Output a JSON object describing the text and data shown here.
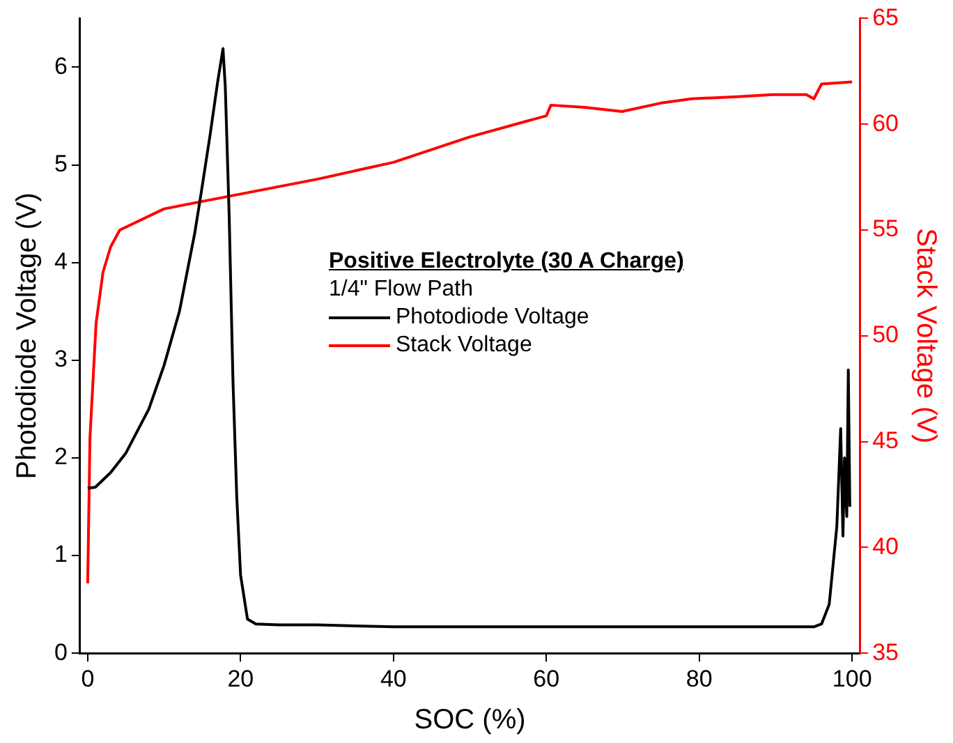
{
  "chart_data": {
    "type": "line",
    "xlabel": "SOC (%)",
    "ylabel": "Photodiode Voltage (V)",
    "y2label": "Stack Voltage (V)",
    "legend_title": "Positive Electrolyte (30 A Charge)",
    "annotations": [
      "1/4\" Flow Path"
    ],
    "xlim": [
      -1,
      101
    ],
    "xticks": [
      0,
      20,
      40,
      60,
      80,
      100
    ],
    "ylim": [
      0,
      6.5
    ],
    "yticks": [
      0,
      1,
      2,
      3,
      4,
      5,
      6
    ],
    "y2lim": [
      35,
      65
    ],
    "y2ticks": [
      35,
      40,
      45,
      50,
      55,
      60,
      65
    ],
    "grid": false,
    "legend": "right",
    "marker": "none",
    "line_style": "solid",
    "series": [
      {
        "name": "Photodiode Voltage",
        "color": "#000000",
        "x": [
          0,
          1,
          3,
          5,
          8,
          10,
          12,
          14,
          14.7,
          16,
          17,
          17.7,
          18,
          18.5,
          19,
          19.5,
          20,
          20.9,
          22,
          25,
          30,
          40,
          60,
          80,
          95,
          96,
          97,
          97.5,
          98,
          98.5,
          98.8,
          99,
          99.3,
          99.5,
          99.7
        ],
        "values": [
          1.69,
          1.7,
          1.85,
          2.05,
          2.5,
          2.95,
          3.5,
          4.3,
          4.64,
          5.3,
          5.85,
          6.19,
          5.8,
          4.5,
          2.8,
          1.6,
          0.8,
          0.35,
          0.3,
          0.29,
          0.29,
          0.27,
          0.27,
          0.27,
          0.27,
          0.3,
          0.5,
          0.9,
          1.3,
          2.3,
          1.2,
          2.0,
          1.4,
          2.9,
          1.5
        ]
      },
      {
        "name": "Stack Voltage",
        "color": "#ff0000",
        "axis": "y2",
        "x": [
          0,
          0.3,
          1.1,
          2,
          3,
          4.2,
          10,
          20,
          30,
          40,
          50,
          60,
          60.6,
          65,
          69.9,
          75,
          79,
          85,
          89.6,
          94,
          95,
          96,
          100
        ],
        "values": [
          38.3,
          45.2,
          50.6,
          53,
          54.2,
          55,
          56,
          56.7,
          57.4,
          58.2,
          59.4,
          60.4,
          60.9,
          60.8,
          60.6,
          61,
          61.2,
          61.3,
          61.4,
          61.4,
          61.2,
          61.9,
          62
        ]
      }
    ]
  }
}
